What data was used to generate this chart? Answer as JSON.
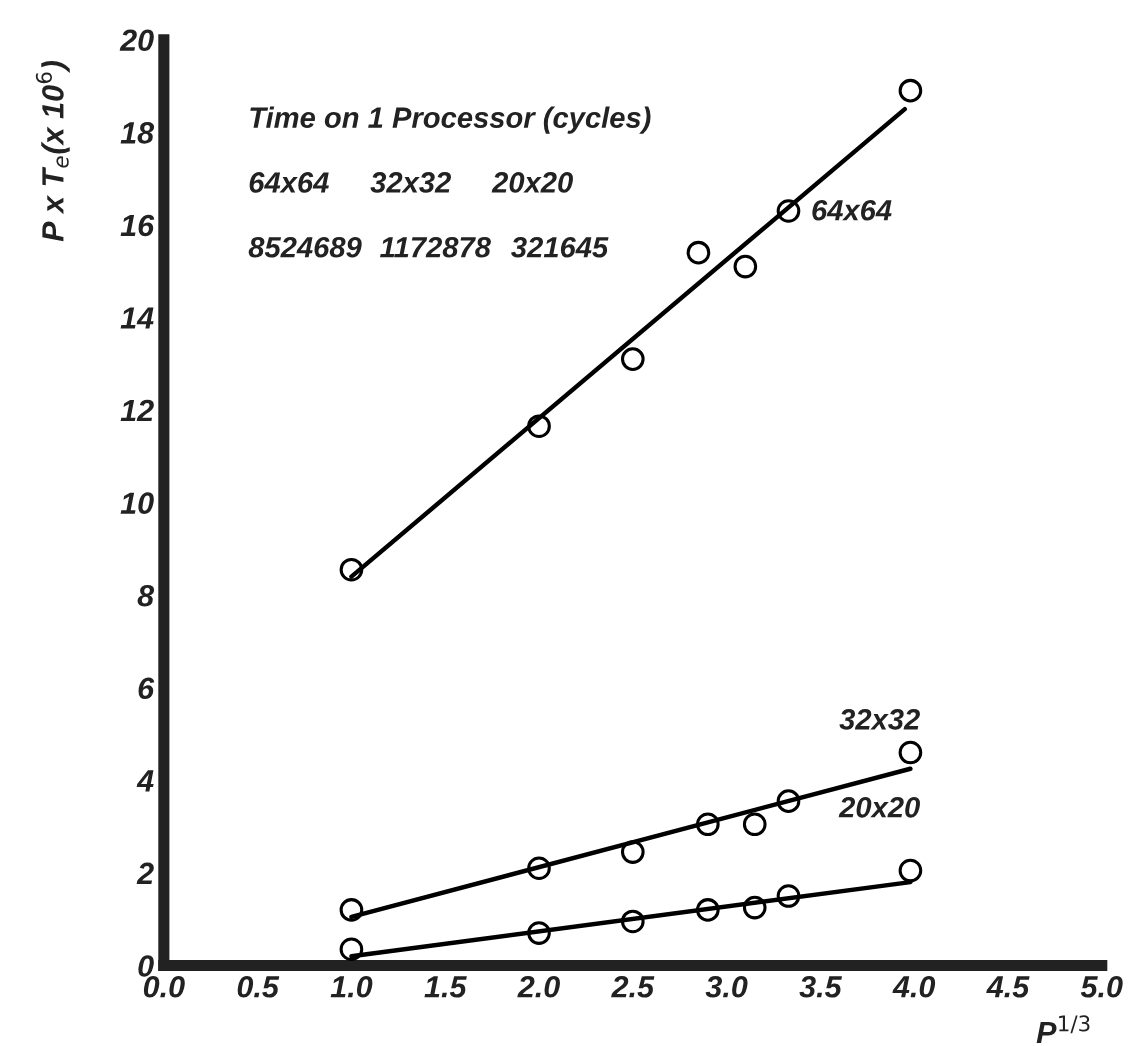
{
  "chart_data": {
    "type": "scatter",
    "xlabel": "P$^{1/3}$",
    "ylabel": "P x T$_{e}$(x 10$^{6}$)",
    "xlim": [
      0,
      5
    ],
    "ylim": [
      0,
      20
    ],
    "xticks": [
      {
        "value": 0,
        "label": "0.0"
      },
      {
        "value": 0.5,
        "label": "0.5"
      },
      {
        "value": 1,
        "label": "1.0"
      },
      {
        "value": 1.5,
        "label": "1.5"
      },
      {
        "value": 2,
        "label": "2.0"
      },
      {
        "value": 2.5,
        "label": "2.5"
      },
      {
        "value": 3,
        "label": "3.0"
      },
      {
        "value": 3.5,
        "label": "3.5"
      },
      {
        "value": 4,
        "label": "4.0"
      },
      {
        "value": 4.5,
        "label": "4.5"
      },
      {
        "value": 5,
        "label": "5.0"
      }
    ],
    "yticks": [
      0,
      2,
      4,
      6,
      8,
      10,
      12,
      14,
      16,
      18,
      20
    ],
    "grid": false,
    "legend": false,
    "series": [
      {
        "marker": "circle",
        "color": "#000000",
        "x": [
          1,
          2,
          2.5,
          2.85,
          3.1,
          3.33,
          3.98
        ],
        "values": [
          8.55,
          11.65,
          13.1,
          15.4,
          15.1,
          16.3,
          18.9
        ]
      },
      {
        "marker": "circle",
        "color": "#000000",
        "x": [
          1,
          2,
          2.5,
          2.9,
          3.15,
          3.33,
          3.98
        ],
        "values": [
          1.2,
          2.1,
          2.45,
          3.05,
          3.05,
          3.55,
          4.6
        ]
      },
      {
        "marker": "circle",
        "color": "#000000",
        "x": [
          1,
          2,
          2.5,
          2.9,
          3.15,
          3.33,
          3.98
        ],
        "values": [
          0.35,
          0.7,
          0.95,
          1.2,
          1.25,
          1.5,
          2.05
        ]
      },
      {
        "type": "line",
        "marker": "none",
        "color": "#000000",
        "x": [
          1,
          3.95
        ],
        "values": [
          8.4,
          18.5
        ]
      },
      {
        "type": "line",
        "marker": "none",
        "color": "#000000",
        "x": [
          1,
          3.98
        ],
        "values": [
          1.05,
          4.25
        ]
      },
      {
        "type": "line",
        "marker": "none",
        "color": "#000000",
        "x": [
          1,
          3.98
        ],
        "values": [
          0.2,
          1.8
        ]
      }
    ],
    "annotations": [
      "Time on 1 Processor (cycles)",
      "64x64",
      "32x32",
      "20x20",
      "8524689",
      "1172878",
      "321645",
      "64x64",
      "32x32",
      "20x20"
    ]
  }
}
